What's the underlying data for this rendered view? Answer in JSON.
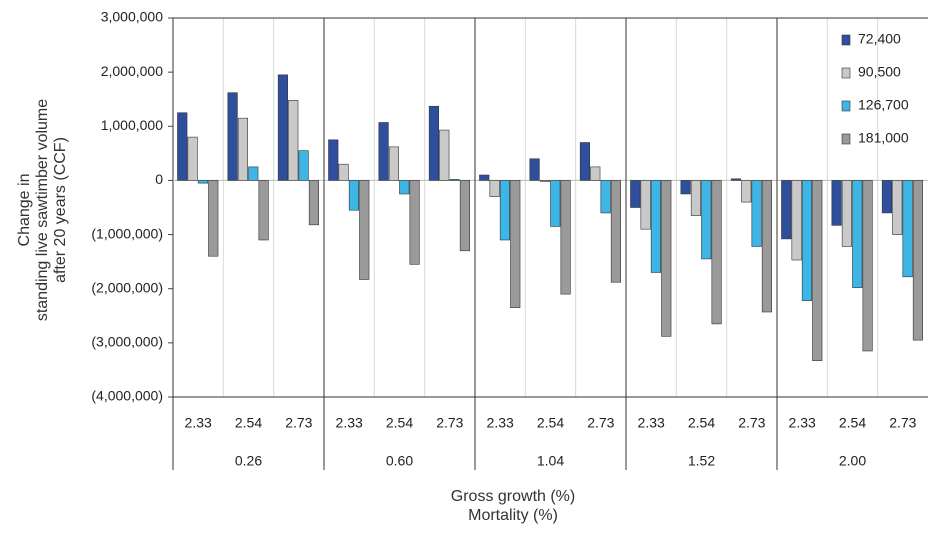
{
  "chart_data": {
    "type": "bar",
    "categories": [
      "2.33",
      "2.54",
      "2.73",
      "2.33",
      "2.54",
      "2.73",
      "2.33",
      "2.54",
      "2.73",
      "2.33",
      "2.54",
      "2.73",
      "2.33",
      "2.54",
      "2.73"
    ],
    "groups": [
      "0.26",
      "0.60",
      "1.04",
      "1.52",
      "2.00"
    ],
    "x_label": [
      "Gross growth (%)",
      "Mortality (%)"
    ],
    "y_label": [
      "Change in",
      "standing live sawtimber volume",
      "after 20 years (CCF)"
    ],
    "series": [
      {
        "name": "72,400",
        "color": "#2f4f9e",
        "values": [
          1250000,
          1620000,
          1950000,
          750000,
          1070000,
          1370000,
          100000,
          400000,
          700000,
          -500000,
          -250000,
          30000,
          -1080000,
          -830000,
          -600000
        ]
      },
      {
        "name": "90,500",
        "color": "#c9c9c9",
        "values": [
          800000,
          1150000,
          1480000,
          300000,
          620000,
          930000,
          -300000,
          -20000,
          250000,
          -900000,
          -650000,
          -400000,
          -1470000,
          -1220000,
          -1000000
        ]
      },
      {
        "name": "126,700",
        "color": "#3db6e6",
        "values": [
          -50000,
          250000,
          550000,
          -550000,
          -250000,
          20000,
          -1100000,
          -850000,
          -600000,
          -1700000,
          -1450000,
          -1220000,
          -2220000,
          -1980000,
          -1780000
        ]
      },
      {
        "name": "181,000",
        "color": "#9a9a9a",
        "values": [
          -1400000,
          -1100000,
          -820000,
          -1830000,
          -1550000,
          -1300000,
          -2350000,
          -2100000,
          -1880000,
          -2880000,
          -2650000,
          -2430000,
          -3330000,
          -3150000,
          -2950000
        ]
      }
    ],
    "ylim": [
      -4000000,
      3000000
    ],
    "yticks": [
      {
        "value": -4000000,
        "label": "(4,000,000)"
      },
      {
        "value": -3000000,
        "label": "(3,000,000)"
      },
      {
        "value": -2000000,
        "label": "(2,000,000)"
      },
      {
        "value": -1000000,
        "label": "(1,000,000)"
      },
      0,
      {
        "value": 1000000,
        "label": "1,000,000"
      },
      {
        "value": 2000000,
        "label": "2,000,000"
      },
      {
        "value": 3000000,
        "label": "3,000,000"
      }
    ],
    "grid": "vertical",
    "legend": "top-right"
  }
}
